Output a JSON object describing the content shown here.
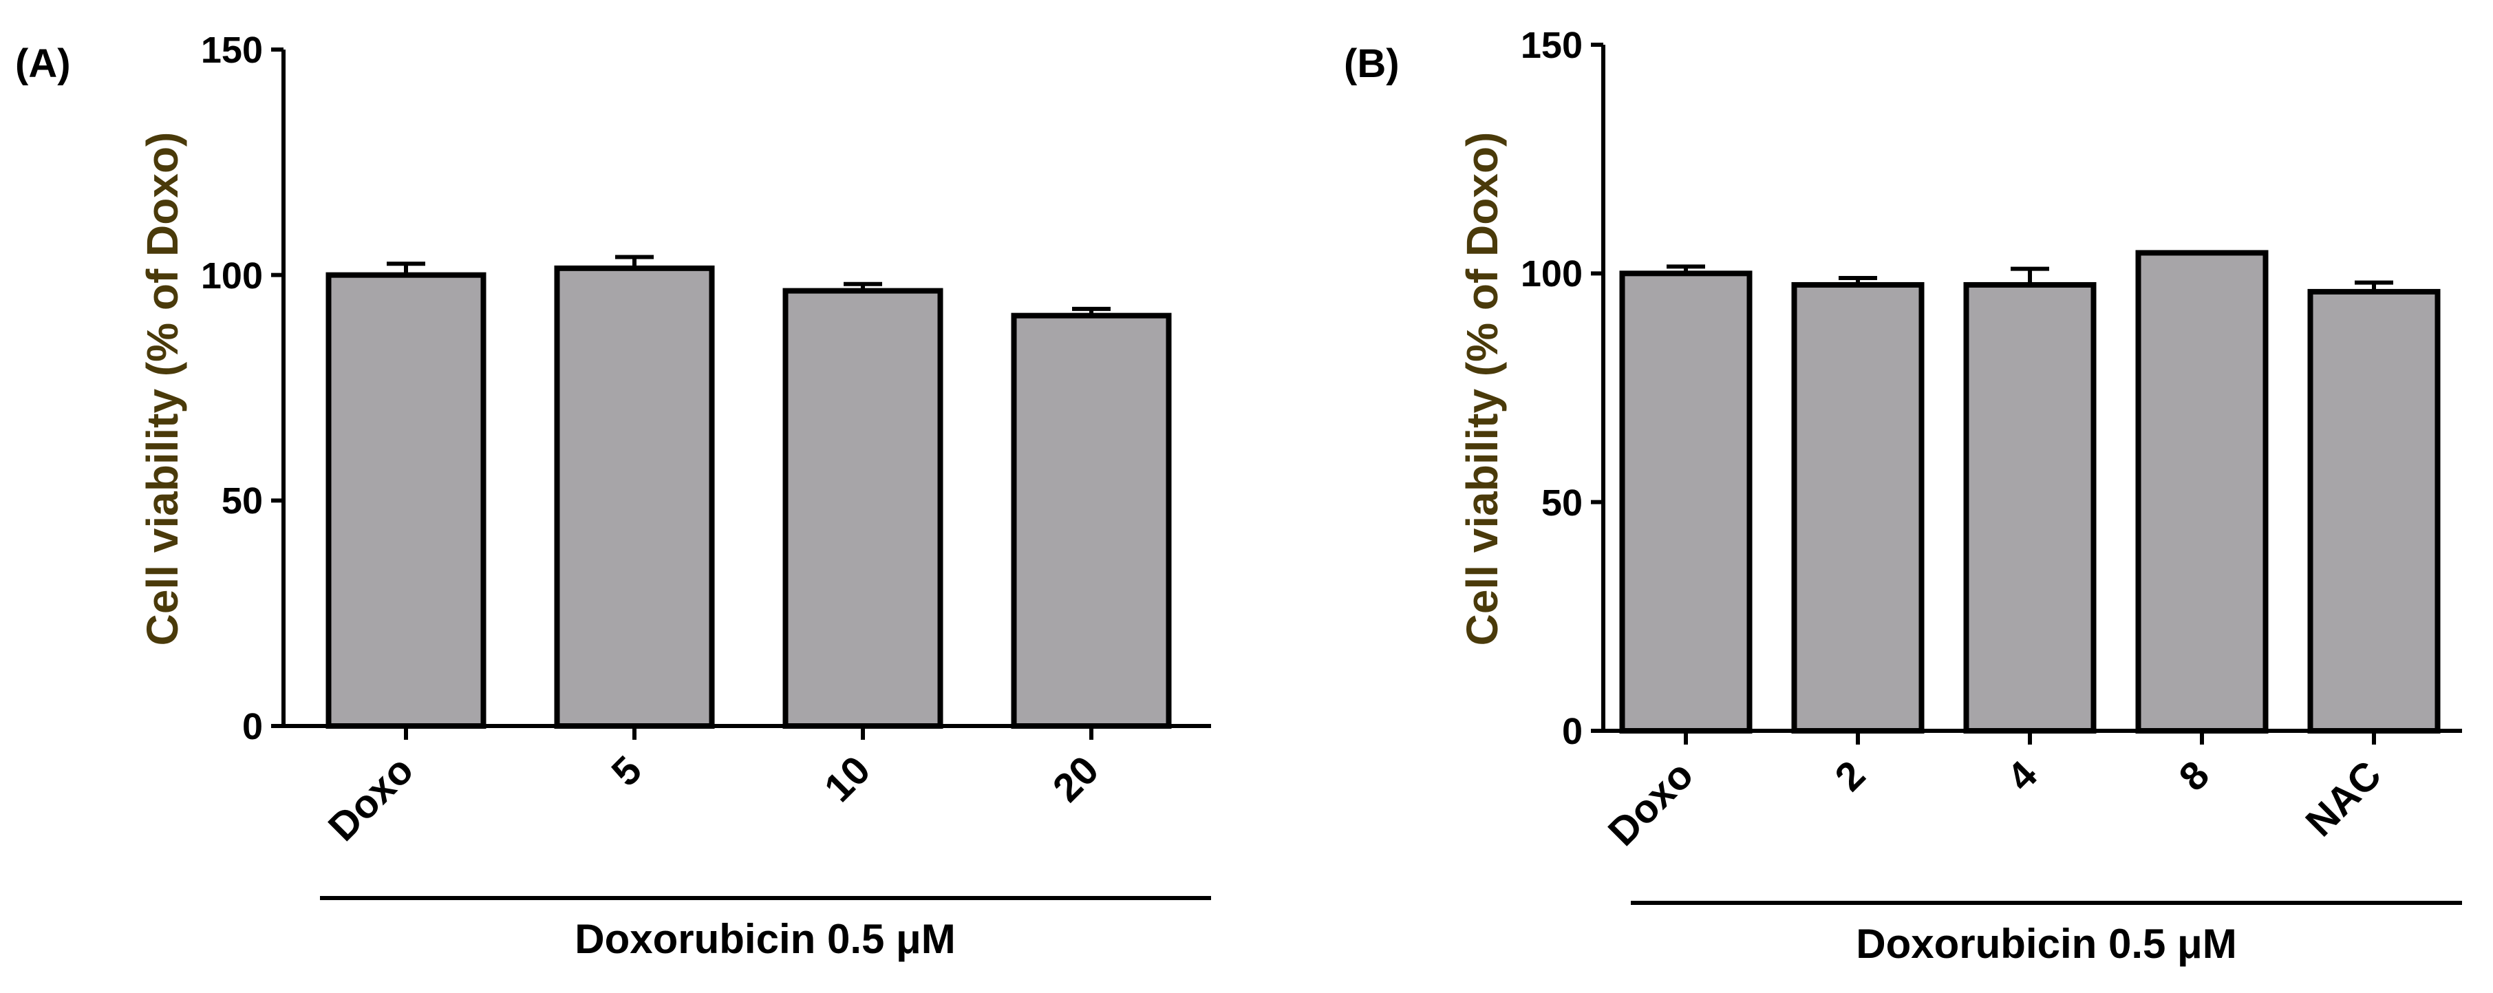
{
  "chart_data": [
    {
      "type": "bar",
      "panel_label": "(A)",
      "categories": [
        "Doxo",
        "5",
        "10",
        "20"
      ],
      "values": [
        100,
        101.5,
        96.5,
        91
      ],
      "errors": [
        2.5,
        2.5,
        1.5,
        1.5
      ],
      "ylabel": "Cell viability (% of Doxo)",
      "ylim": [
        0,
        150
      ],
      "yticks": [
        "0",
        "50",
        "100",
        "150"
      ],
      "group_label": "Doxorubicin 0.5 μM",
      "bar_color": "#a7a5a8",
      "ylabel_color": "#4a3a0a",
      "grid": false
    },
    {
      "type": "bar",
      "panel_label": "(B)",
      "categories": [
        "Doxo",
        "2",
        "4",
        "8",
        "NAC"
      ],
      "values": [
        100,
        97.5,
        97.5,
        104.5,
        96
      ],
      "errors": [
        1.5,
        1.5,
        3.5,
        0,
        2
      ],
      "ylabel": "Cell viability (% of Doxo)",
      "ylim": [
        0,
        150
      ],
      "yticks": [
        "0",
        "50",
        "100",
        "150"
      ],
      "group_label": "Doxorubicin 0.5 μM",
      "bar_color": "#a7a5a8",
      "ylabel_color": "#4a3a0a",
      "grid": false
    }
  ]
}
